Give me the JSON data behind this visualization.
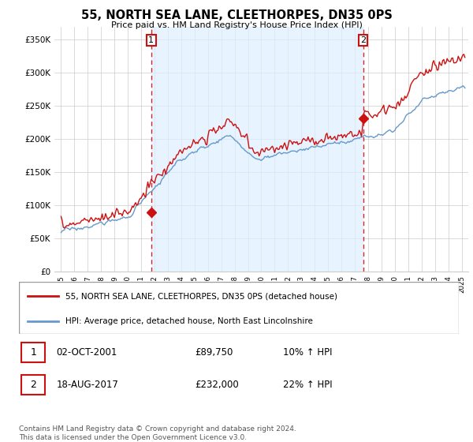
{
  "title": "55, NORTH SEA LANE, CLEETHORPES, DN35 0PS",
  "subtitle": "Price paid vs. HM Land Registry's House Price Index (HPI)",
  "ylabel_ticks": [
    "£0",
    "£50K",
    "£100K",
    "£150K",
    "£200K",
    "£250K",
    "£300K",
    "£350K"
  ],
  "ytick_vals": [
    0,
    50000,
    100000,
    150000,
    200000,
    250000,
    300000,
    350000
  ],
  "ylim": [
    0,
    370000
  ],
  "xlim_start": 1994.5,
  "xlim_end": 2025.5,
  "red_color": "#cc1111",
  "blue_color": "#6699cc",
  "vline_color": "#cc1111",
  "shade_color": "#ddeeff",
  "marker1_date": 2001.75,
  "marker2_date": 2017.62,
  "marker1_price": 89750,
  "marker2_price": 232000,
  "legend_line1": "55, NORTH SEA LANE, CLEETHORPES, DN35 0PS (detached house)",
  "legend_line2": "HPI: Average price, detached house, North East Lincolnshire",
  "table_row1": [
    "1",
    "02-OCT-2001",
    "£89,750",
    "10% ↑ HPI"
  ],
  "table_row2": [
    "2",
    "18-AUG-2017",
    "£232,000",
    "22% ↑ HPI"
  ],
  "footnote": "Contains HM Land Registry data © Crown copyright and database right 2024.\nThis data is licensed under the Open Government Licence v3.0.",
  "background_color": "#ffffff",
  "grid_color": "#cccccc"
}
